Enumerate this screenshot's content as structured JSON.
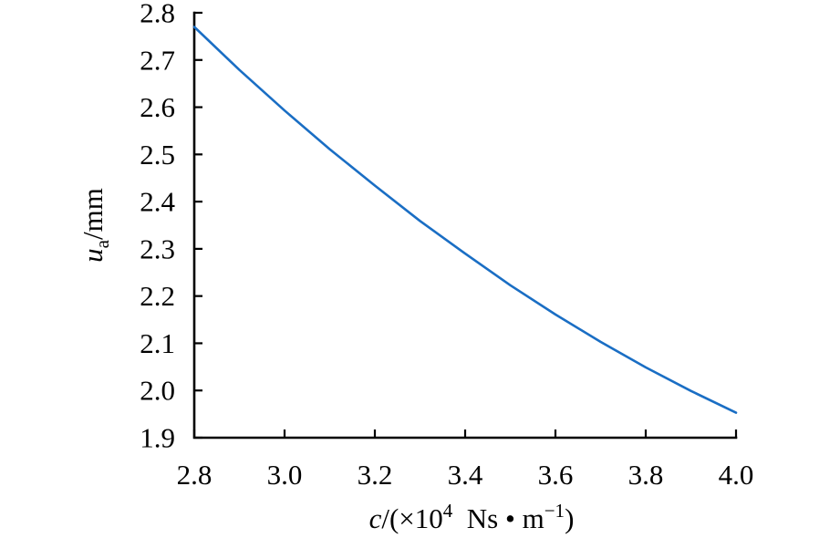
{
  "chart_data": {
    "type": "line",
    "title": "",
    "xlabel": "c/(×10⁴ Ns•m⁻¹)",
    "ylabel": "uₐ/mm",
    "xlabel_parts": [
      {
        "t": "c",
        "i": true
      },
      {
        "t": "/(×10"
      },
      {
        "t": "4",
        "s": "sup"
      },
      {
        "t": "  Ns • m"
      },
      {
        "t": "−1",
        "s": "sup"
      },
      {
        "t": ")"
      }
    ],
    "ylabel_parts": [
      {
        "t": "u",
        "i": true
      },
      {
        "t": "a",
        "s": "sub"
      },
      {
        "t": "/mm"
      }
    ],
    "x": [
      2.8,
      2.9,
      3.0,
      3.1,
      3.2,
      3.3,
      3.4,
      3.5,
      3.6,
      3.7,
      3.8,
      3.9,
      4.0
    ],
    "y": [
      2.77,
      2.679,
      2.593,
      2.511,
      2.434,
      2.359,
      2.29,
      2.223,
      2.161,
      2.103,
      2.049,
      1.999,
      1.953
    ],
    "xlim": [
      2.8,
      4.0
    ],
    "ylim": [
      1.9,
      2.8
    ],
    "xticks": [
      2.8,
      3.0,
      3.2,
      3.4,
      3.6,
      3.8,
      4.0
    ],
    "xtick_labels": [
      "2.8",
      "3.0",
      "3.2",
      "3.4",
      "3.6",
      "3.8",
      "4.0"
    ],
    "yticks": [
      1.9,
      2.0,
      2.1,
      2.2,
      2.3,
      2.4,
      2.5,
      2.6,
      2.7,
      2.8
    ],
    "ytick_labels": [
      "1.9",
      "2.0",
      "2.1",
      "2.2",
      "2.3",
      "2.4",
      "2.5",
      "2.6",
      "2.7",
      "2.8"
    ],
    "grid": false,
    "legend": false,
    "line_color": "#1a6ec4",
    "axis_color": "#000000",
    "background": "#ffffff"
  }
}
